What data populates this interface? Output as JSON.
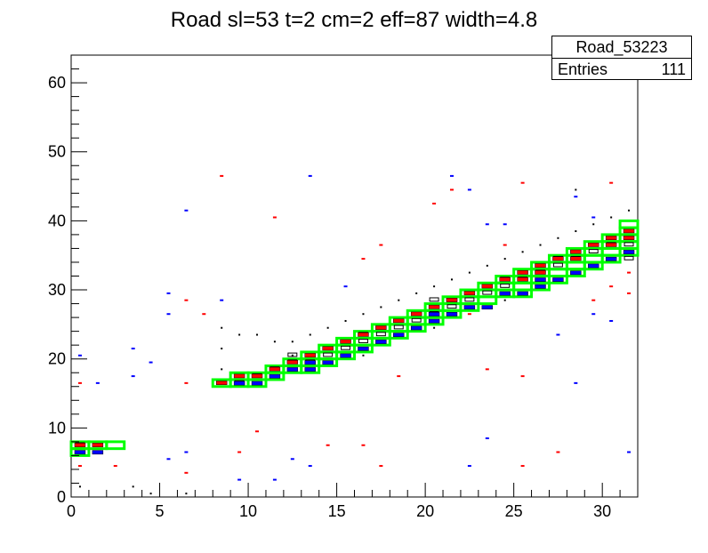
{
  "chart_data": {
    "type": "heatmap",
    "title": "Road sl=53 t=2 cm=2 eff=87 width=4.8",
    "xlim": [
      0,
      32
    ],
    "ylim": [
      0,
      64
    ],
    "x_ticks": [
      0,
      5,
      10,
      15,
      20,
      25,
      30
    ],
    "y_ticks": [
      0,
      10,
      20,
      30,
      40,
      50,
      60
    ],
    "stats": {
      "name": "Road_53223",
      "entries_label": "Entries",
      "entries": "111"
    },
    "colors": {
      "road": "#00ff00",
      "red": "#ff0000",
      "blue": "#0000ff",
      "black": "#000000"
    },
    "road": [
      [
        0,
        6
      ],
      [
        0,
        7
      ],
      [
        1,
        7
      ],
      [
        2,
        7
      ],
      [
        8,
        16
      ],
      [
        9,
        16
      ],
      [
        9,
        17
      ],
      [
        10,
        16
      ],
      [
        10,
        17
      ],
      [
        11,
        17
      ],
      [
        11,
        18
      ],
      [
        12,
        18
      ],
      [
        12,
        19
      ],
      [
        13,
        18
      ],
      [
        13,
        19
      ],
      [
        13,
        20
      ],
      [
        14,
        19
      ],
      [
        14,
        20
      ],
      [
        14,
        21
      ],
      [
        15,
        20
      ],
      [
        15,
        21
      ],
      [
        15,
        22
      ],
      [
        16,
        21
      ],
      [
        16,
        22
      ],
      [
        16,
        23
      ],
      [
        17,
        22
      ],
      [
        17,
        23
      ],
      [
        17,
        24
      ],
      [
        18,
        23
      ],
      [
        18,
        24
      ],
      [
        18,
        25
      ],
      [
        19,
        24
      ],
      [
        19,
        25
      ],
      [
        19,
        26
      ],
      [
        20,
        25
      ],
      [
        20,
        26
      ],
      [
        20,
        27
      ],
      [
        21,
        26
      ],
      [
        21,
        27
      ],
      [
        21,
        28
      ],
      [
        22,
        27
      ],
      [
        22,
        28
      ],
      [
        22,
        29
      ],
      [
        23,
        28
      ],
      [
        23,
        29
      ],
      [
        23,
        30
      ],
      [
        24,
        29
      ],
      [
        24,
        30
      ],
      [
        24,
        31
      ],
      [
        25,
        29
      ],
      [
        25,
        30
      ],
      [
        25,
        31
      ],
      [
        25,
        32
      ],
      [
        26,
        30
      ],
      [
        26,
        31
      ],
      [
        26,
        32
      ],
      [
        26,
        33
      ],
      [
        27,
        31
      ],
      [
        27,
        32
      ],
      [
        27,
        33
      ],
      [
        27,
        34
      ],
      [
        28,
        32
      ],
      [
        28,
        33
      ],
      [
        28,
        34
      ],
      [
        28,
        35
      ],
      [
        29,
        33
      ],
      [
        29,
        34
      ],
      [
        29,
        35
      ],
      [
        29,
        36
      ],
      [
        30,
        34
      ],
      [
        30,
        35
      ],
      [
        30,
        36
      ],
      [
        30,
        37
      ],
      [
        31,
        35
      ],
      [
        31,
        36
      ],
      [
        31,
        37
      ],
      [
        31,
        38
      ],
      [
        31,
        39
      ]
    ],
    "hits_red": [
      [
        0,
        7
      ],
      [
        1,
        7
      ],
      [
        8,
        16
      ],
      [
        9,
        17
      ],
      [
        10,
        17
      ],
      [
        11,
        18
      ],
      [
        12,
        19
      ],
      [
        13,
        20
      ],
      [
        14,
        21
      ],
      [
        15,
        22
      ],
      [
        16,
        23
      ],
      [
        17,
        24
      ],
      [
        18,
        25
      ],
      [
        19,
        26
      ],
      [
        20,
        27
      ],
      [
        21,
        28
      ],
      [
        22,
        29
      ],
      [
        23,
        30
      ],
      [
        24,
        31
      ],
      [
        25,
        32
      ],
      [
        26,
        33
      ],
      [
        27,
        34
      ],
      [
        28,
        35
      ],
      [
        29,
        36
      ],
      [
        30,
        37
      ],
      [
        31,
        38
      ],
      [
        21,
        28
      ],
      [
        25,
        31
      ],
      [
        26,
        32
      ],
      [
        28,
        34
      ],
      [
        30,
        36
      ],
      [
        31,
        37
      ]
    ],
    "hits_blue": [
      [
        0,
        6
      ],
      [
        1,
        6
      ],
      [
        9,
        16
      ],
      [
        10,
        16
      ],
      [
        11,
        17
      ],
      [
        12,
        18
      ],
      [
        13,
        19
      ],
      [
        14,
        19
      ],
      [
        15,
        20
      ],
      [
        16,
        21
      ],
      [
        17,
        22
      ],
      [
        18,
        23
      ],
      [
        19,
        24
      ],
      [
        20,
        25
      ],
      [
        21,
        26
      ],
      [
        22,
        27
      ],
      [
        23,
        27
      ],
      [
        24,
        29
      ],
      [
        25,
        29
      ],
      [
        26,
        30
      ],
      [
        27,
        31
      ],
      [
        28,
        32
      ],
      [
        29,
        33
      ],
      [
        30,
        34
      ],
      [
        31,
        35
      ],
      [
        13,
        18
      ],
      [
        20,
        26
      ],
      [
        26,
        31
      ]
    ],
    "hits_box": [
      [
        0,
        7
      ],
      [
        9,
        16
      ],
      [
        10,
        17
      ],
      [
        11,
        18
      ],
      [
        12,
        19
      ],
      [
        13,
        19
      ],
      [
        14,
        20
      ],
      [
        15,
        21
      ],
      [
        16,
        22
      ],
      [
        17,
        23
      ],
      [
        18,
        24
      ],
      [
        19,
        25
      ],
      [
        20,
        26
      ],
      [
        21,
        27
      ],
      [
        22,
        28
      ],
      [
        23,
        29
      ],
      [
        24,
        30
      ],
      [
        25,
        31
      ],
      [
        26,
        32
      ],
      [
        27,
        33
      ],
      [
        28,
        34
      ],
      [
        29,
        35
      ],
      [
        30,
        36
      ],
      [
        31,
        36
      ],
      [
        12,
        20
      ],
      [
        16,
        23
      ],
      [
        20,
        28
      ],
      [
        24,
        31
      ],
      [
        27,
        34
      ],
      [
        31,
        34
      ]
    ],
    "noise_red": [
      [
        0,
        16.5
      ],
      [
        0,
        4.5
      ],
      [
        2,
        4.5
      ],
      [
        8,
        46.5
      ],
      [
        6,
        3.5
      ],
      [
        6,
        28.5
      ],
      [
        7,
        26.5
      ],
      [
        6,
        16.5
      ],
      [
        9,
        6.5
      ],
      [
        10,
        9.5
      ],
      [
        11,
        40.5
      ],
      [
        14,
        7.5
      ],
      [
        16,
        34.5
      ],
      [
        16,
        7.5
      ],
      [
        17,
        36.5
      ],
      [
        17,
        4.5
      ],
      [
        18,
        17.5
      ],
      [
        20,
        42.5
      ],
      [
        21,
        44.5
      ],
      [
        22,
        26.5
      ],
      [
        24,
        36.5
      ],
      [
        23,
        18.5
      ],
      [
        25,
        45.5
      ],
      [
        25,
        17.5
      ],
      [
        25,
        4.5
      ],
      [
        27,
        6.5
      ],
      [
        29,
        28.5
      ],
      [
        30,
        45.5
      ],
      [
        30,
        30.5
      ],
      [
        31,
        29.5
      ],
      [
        31,
        32.5
      ]
    ],
    "noise_blue": [
      [
        0,
        20.5
      ],
      [
        1,
        16.5
      ],
      [
        3,
        21.5
      ],
      [
        3,
        17.5
      ],
      [
        4,
        19.5
      ],
      [
        5,
        29.5
      ],
      [
        5,
        26.5
      ],
      [
        5,
        5.5
      ],
      [
        6,
        41.5
      ],
      [
        6,
        6.5
      ],
      [
        8,
        28.5
      ],
      [
        9,
        2.5
      ],
      [
        11,
        2.5
      ],
      [
        12,
        5.5
      ],
      [
        13,
        46.5
      ],
      [
        13,
        4.5
      ],
      [
        15,
        30.5
      ],
      [
        21,
        46.5
      ],
      [
        22,
        44.5
      ],
      [
        22,
        4.5
      ],
      [
        23,
        39.5
      ],
      [
        23,
        8.5
      ],
      [
        24,
        39.5
      ],
      [
        27,
        23.5
      ],
      [
        28,
        43.5
      ],
      [
        28,
        16.5
      ],
      [
        29,
        40.5
      ],
      [
        29,
        26.5
      ],
      [
        30,
        25.5
      ],
      [
        31,
        6.5
      ]
    ],
    "noise_black": [
      [
        0,
        1.5
      ],
      [
        3,
        1.5
      ],
      [
        4,
        0.5
      ],
      [
        6,
        0.5
      ],
      [
        8,
        24.5
      ],
      [
        9,
        23.5
      ],
      [
        10,
        23.5
      ],
      [
        11,
        22.5
      ],
      [
        12,
        22.5
      ],
      [
        13,
        23.5
      ],
      [
        14,
        24.5
      ],
      [
        15,
        25.5
      ],
      [
        16,
        26.5
      ],
      [
        17,
        27.5
      ],
      [
        18,
        28.5
      ],
      [
        19,
        29.5
      ],
      [
        20,
        30.5
      ],
      [
        21,
        31.5
      ],
      [
        22,
        32.5
      ],
      [
        23,
        33.5
      ],
      [
        24,
        34.5
      ],
      [
        25,
        35.5
      ],
      [
        26,
        36.5
      ],
      [
        27,
        37.5
      ],
      [
        28,
        44.5
      ],
      [
        8,
        21.5
      ],
      [
        8,
        18.5
      ],
      [
        12,
        20.5
      ],
      [
        16,
        20.5
      ],
      [
        20,
        24.5
      ],
      [
        24,
        28.5
      ],
      [
        28,
        38.5
      ],
      [
        29,
        39.5
      ],
      [
        30,
        40.5
      ],
      [
        31,
        41.5
      ]
    ]
  }
}
